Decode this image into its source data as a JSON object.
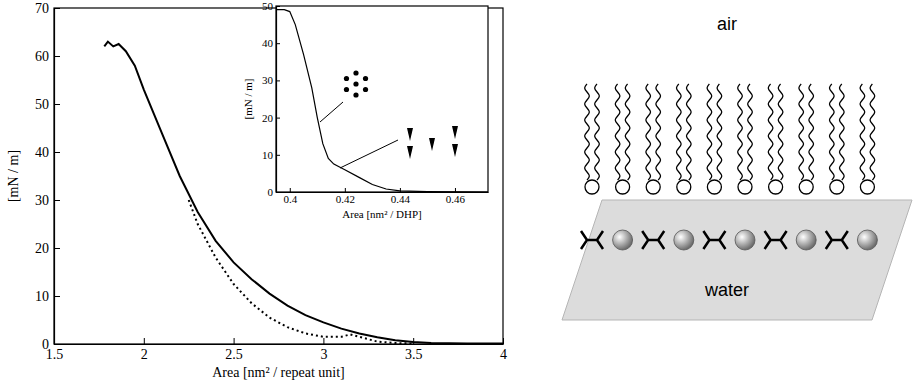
{
  "chart_data": [
    {
      "type": "line",
      "xlabel": "Area [nm² / repeat unit]",
      "ylabel": "[mN / m]",
      "xlim": [
        1.5,
        4
      ],
      "ylim": [
        0,
        70
      ],
      "xticks": [
        1.5,
        2,
        2.5,
        3,
        3.5,
        4
      ],
      "yticks": [
        0,
        10,
        20,
        30,
        40,
        50,
        60,
        70
      ],
      "series": [
        {
          "color": "#000000",
          "line_style": "solid",
          "x": [
            1.78,
            1.8,
            1.83,
            1.86,
            1.9,
            1.95,
            2.0,
            2.1,
            2.2,
            2.3,
            2.4,
            2.5,
            2.6,
            2.7,
            2.8,
            2.9,
            3.0,
            3.1,
            3.2,
            3.3,
            3.4,
            3.5,
            3.6,
            3.8,
            4.0
          ],
          "values": [
            62,
            63,
            62,
            62.5,
            61,
            58,
            53,
            44,
            35,
            27.5,
            21.5,
            17,
            13.5,
            10.5,
            8,
            6,
            4.5,
            3.2,
            2.2,
            1.4,
            0.8,
            0.4,
            0.2,
            0.1,
            0.1
          ]
        },
        {
          "color": "#000000",
          "line_style": "dotted",
          "x": [
            2.25,
            2.3,
            2.4,
            2.5,
            2.6,
            2.7,
            2.8,
            2.9,
            3.0,
            3.1,
            3.15,
            3.2,
            3.3,
            3.4,
            3.5
          ],
          "values": [
            30,
            25,
            18,
            12.5,
            8.5,
            5.5,
            3.5,
            2.2,
            1.5,
            1.5,
            2,
            1.5,
            0.5,
            0.2,
            0.1
          ]
        }
      ]
    },
    {
      "type": "line",
      "xlabel": "Area [nm² / DHP]",
      "ylabel": "[mN / m]",
      "xlim": [
        0.395,
        0.472
      ],
      "ylim": [
        0,
        50
      ],
      "xticks": [
        0.4,
        0.42,
        0.44,
        0.46
      ],
      "yticks": [
        0,
        10,
        20,
        30,
        40,
        50
      ],
      "series": [
        {
          "color": "#000000",
          "line_style": "solid",
          "x": [
            0.395,
            0.398,
            0.4,
            0.402,
            0.405,
            0.408,
            0.41,
            0.412,
            0.414,
            0.416,
            0.42,
            0.425,
            0.43,
            0.435,
            0.44,
            0.45,
            0.472
          ],
          "values": [
            49,
            49,
            48.5,
            45,
            37,
            28,
            20,
            13,
            9,
            7.5,
            6,
            4,
            2,
            0.8,
            0.3,
            0.1,
            0
          ]
        }
      ]
    }
  ],
  "diagram": {
    "top_label": "air",
    "bottom_label": "water"
  }
}
